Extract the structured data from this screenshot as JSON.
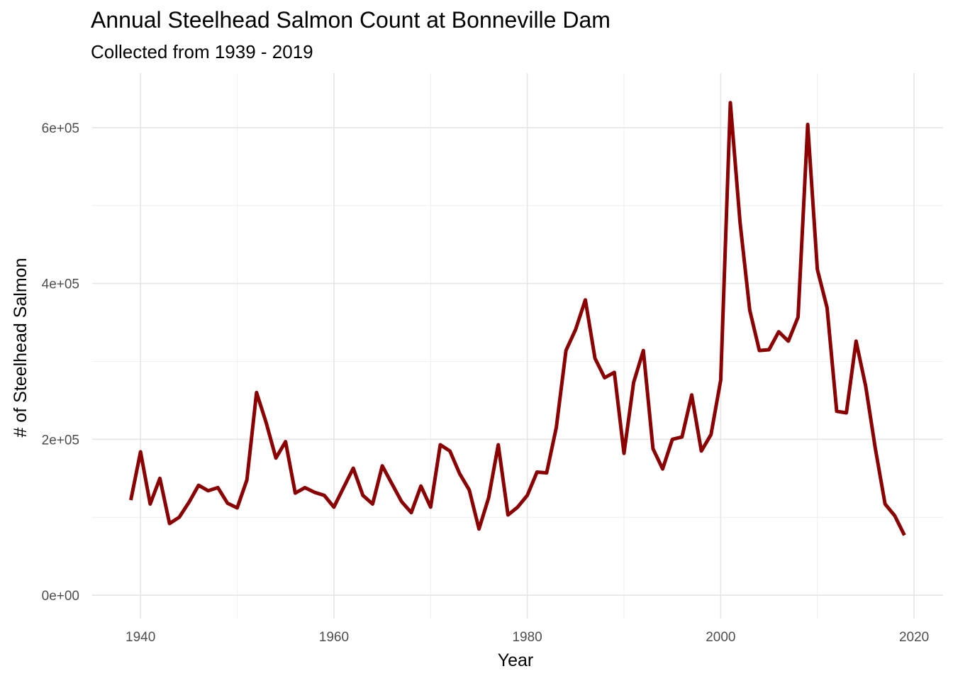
{
  "chart_data": {
    "type": "line",
    "title": "Annual Steelhead Salmon Count at Bonneville Dam",
    "subtitle": "Collected from 1939 - 2019",
    "xlabel": "Year",
    "ylabel": "# of Steelhead Salmon",
    "xlim": [
      1935,
      2023
    ],
    "ylim": [
      -30000,
      670000
    ],
    "x_ticks": [
      1940,
      1960,
      1980,
      2000,
      2020
    ],
    "x_tick_labels": [
      "1940",
      "1960",
      "1980",
      "2000",
      "2020"
    ],
    "y_ticks": [
      0,
      200000,
      400000,
      600000
    ],
    "y_tick_labels": [
      "0e+00",
      "2e+05",
      "4e+05",
      "6e+05"
    ],
    "grid": true,
    "line_color": "#8B0000",
    "series": [
      {
        "x": [
          1939,
          1940,
          1941,
          1942,
          1943,
          1944,
          1945,
          1946,
          1947,
          1948,
          1949,
          1950,
          1951,
          1952,
          1953,
          1954,
          1955,
          1956,
          1957,
          1958,
          1959,
          1960,
          1961,
          1962,
          1963,
          1964,
          1965,
          1966,
          1967,
          1968,
          1969,
          1970,
          1971,
          1972,
          1973,
          1974,
          1975,
          1976,
          1977,
          1978,
          1979,
          1980,
          1981,
          1982,
          1983,
          1984,
          1985,
          1986,
          1987,
          1988,
          1989,
          1990,
          1991,
          1992,
          1993,
          1994,
          1995,
          1996,
          1997,
          1998,
          1999,
          2000,
          2001,
          2002,
          2003,
          2004,
          2005,
          2006,
          2007,
          2008,
          2009,
          2010,
          2011,
          2012,
          2013,
          2014,
          2015,
          2016,
          2017,
          2018,
          2019
        ],
        "values": [
          122000,
          184000,
          117000,
          150000,
          92000,
          100000,
          119000,
          141000,
          134000,
          138000,
          118000,
          112000,
          148000,
          260000,
          221000,
          176000,
          197000,
          131000,
          138000,
          132000,
          128000,
          113000,
          138000,
          163000,
          128000,
          117000,
          166000,
          143000,
          120000,
          106000,
          140000,
          113000,
          193000,
          185000,
          156000,
          135000,
          85000,
          125000,
          193000,
          103000,
          113000,
          128000,
          158000,
          157000,
          215000,
          314000,
          341000,
          379000,
          304000,
          279000,
          286000,
          182000,
          273000,
          314000,
          188000,
          162000,
          200000,
          203000,
          257000,
          185000,
          206000,
          276000,
          632000,
          479000,
          366000,
          314000,
          315000,
          338000,
          326000,
          357000,
          604000,
          418000,
          369000,
          236000,
          234000,
          326000,
          268000,
          188000,
          117000,
          102000,
          77000
        ]
      }
    ]
  }
}
